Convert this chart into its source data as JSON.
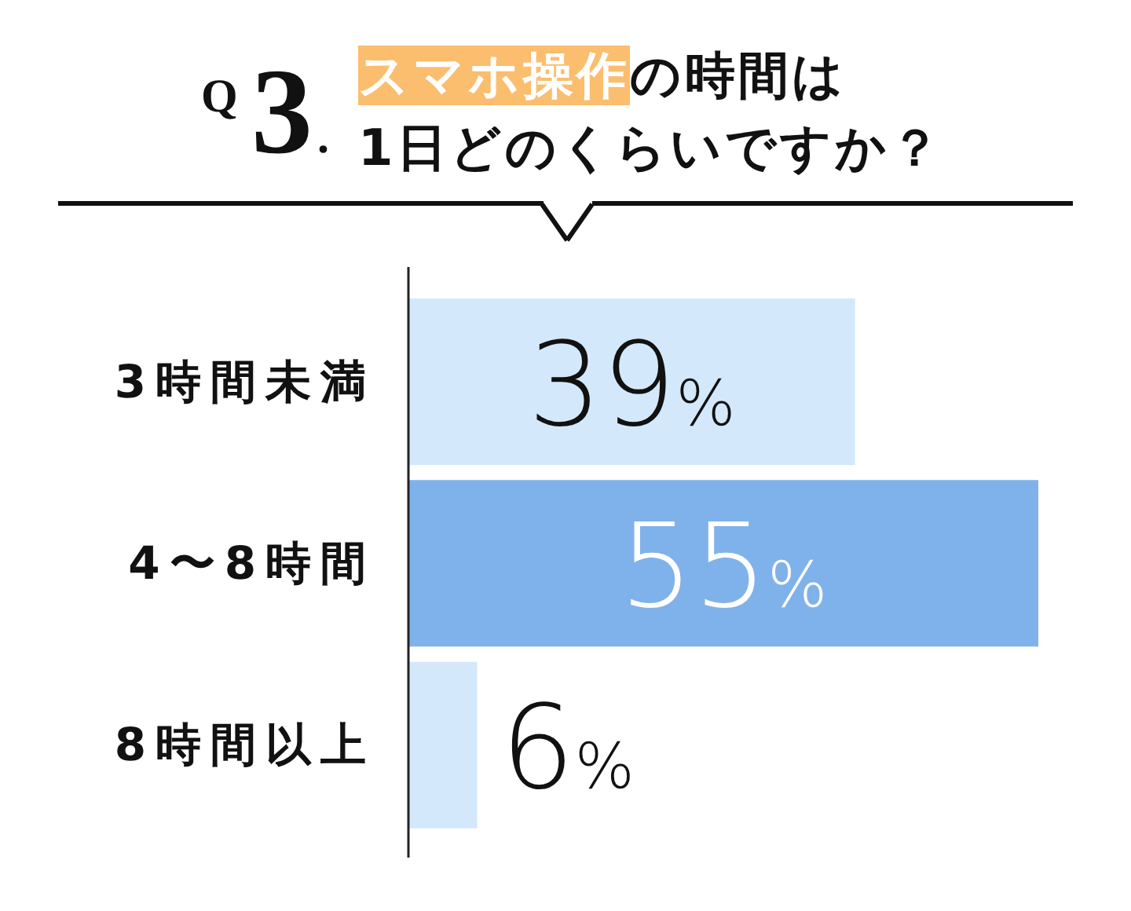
{
  "chart_data": {
    "type": "bar",
    "orientation": "horizontal",
    "title": "Q3.\nスマホ操作の時間は\n1日どのくらいですか？",
    "categories": [
      "3時間未満",
      "4〜8時間",
      "8時間以上"
    ],
    "values": [
      39,
      55,
      6
    ],
    "colors": [
      "#d4e8fc",
      "#7fb2eb",
      "#d4e8fc"
    ],
    "value_labels": [
      "39%",
      "55%",
      "6%"
    ],
    "tick_labels": "y"
  }
}
